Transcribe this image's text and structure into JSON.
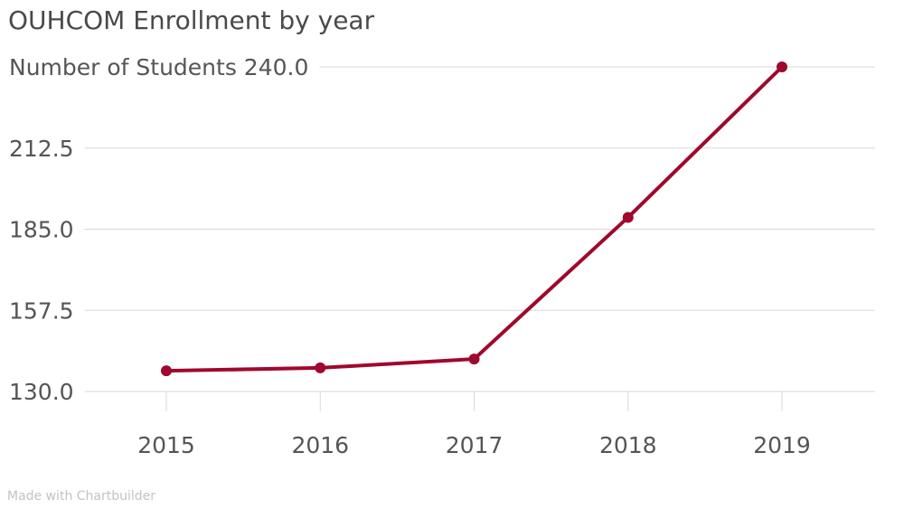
{
  "chart_data": {
    "type": "line",
    "title": "OUHCOM Enrollment by year",
    "ylabel": "Number of Students",
    "xlabel": "",
    "x": [
      "2015",
      "2016",
      "2017",
      "2018",
      "2019"
    ],
    "series": [
      {
        "values": [
          137,
          138,
          141,
          189,
          240
        ]
      }
    ],
    "y_ticks": [
      "130.0",
      "157.5",
      "185.0",
      "212.5",
      "240.0"
    ],
    "y_tick_values": [
      130,
      157.5,
      185,
      212.5,
      240
    ],
    "ylim": [
      130,
      240
    ],
    "grid": true,
    "line_color": "#a0082e"
  },
  "credit": "Made with Chartbuilder"
}
